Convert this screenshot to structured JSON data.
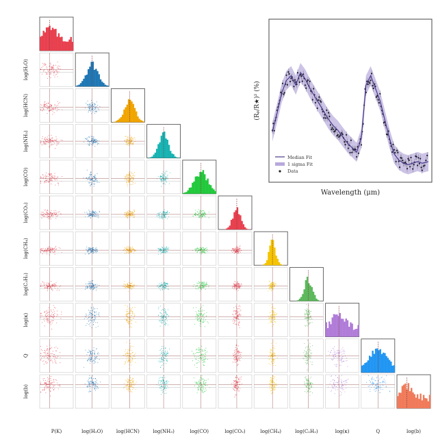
{
  "chart_data": [
    {
      "type": "scatter",
      "kind": "corner-plot",
      "colors": [
        "#e8404f",
        "#1f77b4",
        "#f0a500",
        "#17b3b3",
        "#22c93c",
        "#e8404f",
        "#f5c400",
        "#5cb85c",
        "#b07cd8",
        "#2196f3",
        "#f07a5a"
      ],
      "parameters": [
        {
          "label": "P(K)",
          "title": "",
          "peak": 0.3,
          "spread": 0.3
        },
        {
          "label": "log(H₂O)",
          "title": "",
          "peak": 0.5,
          "spread": 0.18
        },
        {
          "label": "log(HCN)",
          "title": "",
          "peak": 0.55,
          "spread": 0.16
        },
        {
          "label": "log(NH₃)",
          "title": "",
          "peak": 0.5,
          "spread": 0.15
        },
        {
          "label": "log(CO)",
          "title": "",
          "peak": 0.55,
          "spread": 0.2
        },
        {
          "label": "log(CO₂)",
          "title": "",
          "peak": 0.55,
          "spread": 0.12
        },
        {
          "label": "log(CH₄)",
          "title": "",
          "peak": 0.55,
          "spread": 0.1
        },
        {
          "label": "log(C₂H₂)",
          "title": "",
          "peak": 0.55,
          "spread": 0.12
        },
        {
          "label": "log(κ)",
          "title": "",
          "peak": 0.4,
          "spread": 0.28
        },
        {
          "label": "Q",
          "title": "",
          "peak": 0.5,
          "spread": 0.3
        },
        {
          "label": "log(b)",
          "title": "",
          "peak": 0.3,
          "spread": 0.25
        }
      ],
      "y_axis_labels": [
        "log(H₂O)",
        "log(HCN)",
        "log(NH₃)",
        "log(CO)",
        "log(CO₂)",
        "log(CH₄)",
        "log(C₂H₂)",
        "log(κ)",
        "Q",
        "log(b)"
      ]
    },
    {
      "type": "line",
      "xlabel": "Wavelength (μm)",
      "ylabel": "(Rₚ/R★)² (%)",
      "legend": [
        "Median Fit",
        "1 sigma Fit",
        "Data"
      ],
      "legend_position": "bottom-left",
      "line_color": "#4b3a8c",
      "band_color": "#b7a9dc",
      "x": [
        0.0,
        0.03,
        0.06,
        0.09,
        0.12,
        0.15,
        0.18,
        0.21,
        0.24,
        0.27,
        0.3,
        0.33,
        0.36,
        0.39,
        0.42,
        0.45,
        0.48,
        0.51,
        0.54,
        0.57,
        0.6,
        0.63,
        0.66,
        0.69,
        0.72,
        0.75,
        0.78,
        0.81,
        0.84,
        0.87,
        0.9,
        0.93,
        0.96,
        1.0
      ],
      "median": [
        0.3,
        0.42,
        0.55,
        0.63,
        0.66,
        0.6,
        0.68,
        0.64,
        0.58,
        0.53,
        0.48,
        0.43,
        0.38,
        0.34,
        0.31,
        0.27,
        0.23,
        0.2,
        0.17,
        0.26,
        0.6,
        0.66,
        0.58,
        0.5,
        0.38,
        0.26,
        0.16,
        0.12,
        0.1,
        0.09,
        0.1,
        0.11,
        0.1,
        0.11
      ]
    }
  ]
}
